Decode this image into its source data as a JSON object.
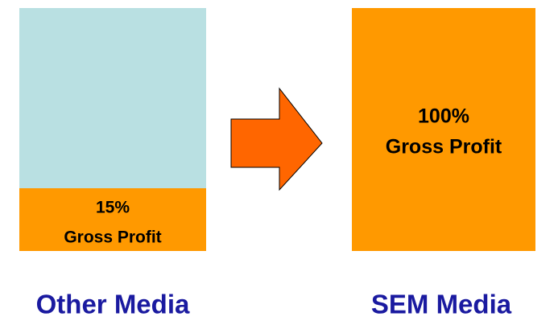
{
  "panels": [
    {
      "percent": "15%",
      "label": "Gross Profit",
      "caption": "Other Media"
    },
    {
      "percent": "100%",
      "label": "Gross Profit",
      "caption": "SEM Media"
    }
  ]
}
